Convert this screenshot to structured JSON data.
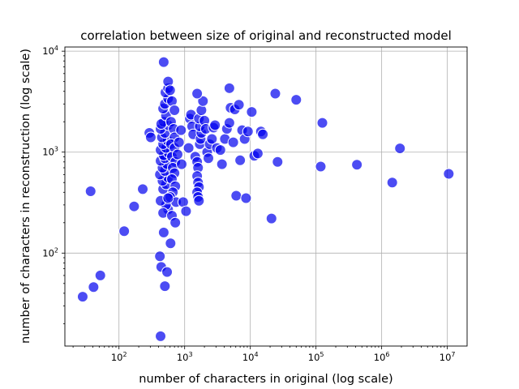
{
  "chart_data": {
    "type": "scatter",
    "title": "correlation between size of original and reconstructed model",
    "xlabel": "number of characters in original (log scale)",
    "ylabel": "number of characters in reconstruction (log scale)",
    "xscale": "log",
    "yscale": "log",
    "xlim": [
      15,
      20000000
    ],
    "ylim": [
      12,
      11000
    ],
    "grid": true,
    "x_ticks": [
      {
        "base": "10",
        "exp": "2",
        "value": 100
      },
      {
        "base": "10",
        "exp": "3",
        "value": 1000
      },
      {
        "base": "10",
        "exp": "4",
        "value": 10000
      },
      {
        "base": "10",
        "exp": "5",
        "value": 100000
      },
      {
        "base": "10",
        "exp": "6",
        "value": 1000000
      },
      {
        "base": "10",
        "exp": "7",
        "value": 10000000
      }
    ],
    "y_ticks": [
      {
        "base": "10",
        "exp": "2",
        "value": 100
      },
      {
        "base": "10",
        "exp": "3",
        "value": 1000
      },
      {
        "base": "10",
        "exp": "4",
        "value": 10000
      }
    ],
    "marker_color": "#0000ee",
    "points": [
      [
        28,
        37
      ],
      [
        37,
        410
      ],
      [
        41,
        46
      ],
      [
        52,
        60
      ],
      [
        120,
        165
      ],
      [
        170,
        290
      ],
      [
        230,
        430
      ],
      [
        290,
        1550
      ],
      [
        305,
        1400
      ],
      [
        430,
        15
      ],
      [
        420,
        93
      ],
      [
        440,
        73
      ],
      [
        500,
        47
      ],
      [
        540,
        65
      ],
      [
        610,
        125
      ],
      [
        560,
        270
      ],
      [
        520,
        300
      ],
      [
        470,
        250
      ],
      [
        480,
        160
      ],
      [
        640,
        235
      ],
      [
        720,
        200
      ],
      [
        430,
        330
      ],
      [
        470,
        430
      ],
      [
        520,
        480
      ],
      [
        460,
        520
      ],
      [
        560,
        560
      ],
      [
        420,
        600
      ],
      [
        500,
        650
      ],
      [
        460,
        700
      ],
      [
        540,
        760
      ],
      [
        430,
        820
      ],
      [
        500,
        870
      ],
      [
        480,
        930
      ],
      [
        570,
        980
      ],
      [
        430,
        1050
      ],
      [
        520,
        1100
      ],
      [
        470,
        1200
      ],
      [
        550,
        1300
      ],
      [
        450,
        1400
      ],
      [
        500,
        1550
      ],
      [
        430,
        1700
      ],
      [
        560,
        1850
      ],
      [
        480,
        2000
      ],
      [
        440,
        1900
      ],
      [
        520,
        2300
      ],
      [
        470,
        2700
      ],
      [
        500,
        3000
      ],
      [
        560,
        3400
      ],
      [
        510,
        3900
      ],
      [
        560,
        4300
      ],
      [
        480,
        7800
      ],
      [
        560,
        5000
      ],
      [
        600,
        4100
      ],
      [
        640,
        3200
      ],
      [
        700,
        2600
      ],
      [
        620,
        2000
      ],
      [
        680,
        1700
      ],
      [
        700,
        1400
      ],
      [
        620,
        1200
      ],
      [
        700,
        1100
      ],
      [
        640,
        900
      ],
      [
        720,
        800
      ],
      [
        660,
        700
      ],
      [
        700,
        620
      ],
      [
        640,
        540
      ],
      [
        720,
        460
      ],
      [
        660,
        400
      ],
      [
        600,
        360
      ],
      [
        740,
        320
      ],
      [
        560,
        350
      ],
      [
        780,
        950
      ],
      [
        820,
        1250
      ],
      [
        880,
        1650
      ],
      [
        900,
        760
      ],
      [
        950,
        320
      ],
      [
        1050,
        260
      ],
      [
        1150,
        1100
      ],
      [
        1200,
        2150
      ],
      [
        1250,
        2350
      ],
      [
        1300,
        1800
      ],
      [
        1350,
        1500
      ],
      [
        1450,
        900
      ],
      [
        1550,
        800
      ],
      [
        1600,
        700
      ],
      [
        1550,
        580
      ],
      [
        1600,
        500
      ],
      [
        1650,
        450
      ],
      [
        1550,
        400
      ],
      [
        1600,
        360
      ],
      [
        1650,
        330
      ],
      [
        1700,
        1200
      ],
      [
        1750,
        1350
      ],
      [
        1800,
        1550
      ],
      [
        1700,
        1800
      ],
      [
        1650,
        2150
      ],
      [
        1800,
        2600
      ],
      [
        1900,
        3200
      ],
      [
        1550,
        3800
      ],
      [
        2000,
        2050
      ],
      [
        2100,
        1700
      ],
      [
        2200,
        1000
      ],
      [
        2300,
        870
      ],
      [
        2400,
        1200
      ],
      [
        2600,
        1350
      ],
      [
        2750,
        1750
      ],
      [
        2900,
        1850
      ],
      [
        3100,
        1100
      ],
      [
        3500,
        1050
      ],
      [
        3700,
        760
      ],
      [
        4100,
        1350
      ],
      [
        4400,
        1700
      ],
      [
        4800,
        1950
      ],
      [
        5000,
        2750
      ],
      [
        4800,
        4300
      ],
      [
        5500,
        1250
      ],
      [
        5800,
        2650
      ],
      [
        6100,
        370
      ],
      [
        6700,
        2950
      ],
      [
        7000,
        830
      ],
      [
        7500,
        1650
      ],
      [
        8200,
        1350
      ],
      [
        8600,
        350
      ],
      [
        9200,
        1600
      ],
      [
        10500,
        2500
      ],
      [
        11500,
        920
      ],
      [
        13000,
        970
      ],
      [
        14500,
        1600
      ],
      [
        15500,
        1500
      ],
      [
        21000,
        220
      ],
      [
        24000,
        3800
      ],
      [
        26000,
        800
      ],
      [
        50000,
        3300
      ],
      [
        118000,
        720
      ],
      [
        125000,
        1950
      ],
      [
        420000,
        750
      ],
      [
        1450000,
        500
      ],
      [
        1900000,
        1090
      ],
      [
        10500000,
        610
      ]
    ]
  }
}
